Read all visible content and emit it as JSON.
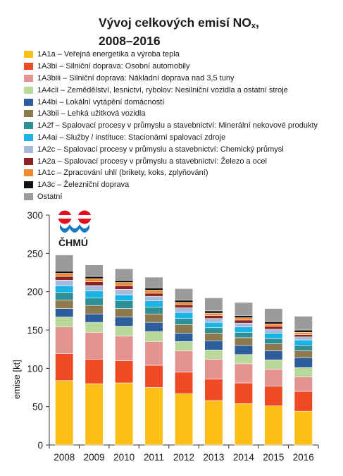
{
  "chart_data": {
    "type": "bar",
    "stacked": true,
    "title_main": "Vývoj celkových emisí NO",
    "title_sub": "x",
    "title_end": ",",
    "title_line2": "2008–2016",
    "ylabel": "emise [kt]",
    "ylim": [
      0,
      300
    ],
    "yticks": [
      0,
      50,
      100,
      150,
      200,
      250,
      300
    ],
    "grid": false,
    "legend_position": "top",
    "categories": [
      "2008",
      "2009",
      "2010",
      "2011",
      "2012",
      "2013",
      "2014",
      "2015",
      "2016"
    ],
    "series": [
      {
        "name": "1A1a – Veřejná energetika a výroba tepla",
        "color": "#fbbf17",
        "values": [
          84,
          80,
          81,
          75,
          67,
          58,
          54,
          51,
          44
        ]
      },
      {
        "name": "1A3bi – Silniční doprava: Osobní automobily",
        "color": "#ef4a24",
        "values": [
          35,
          32,
          29,
          29,
          28,
          28,
          27,
          26,
          26
        ]
      },
      {
        "name": "1A3biii – Silniční doprava: Nákladní doprava nad 3,5 tuny",
        "color": "#e39490",
        "values": [
          35,
          35,
          32,
          31,
          28,
          26,
          25,
          22,
          19
        ]
      },
      {
        "name": "1A4cii – Zemědělství, lesnictví, rybolov: Nesilniční vozidla a ostatní stroje",
        "color": "#b9d99b",
        "values": [
          13,
          13,
          13,
          13,
          12,
          12,
          12,
          12,
          12
        ]
      },
      {
        "name": "1A4bi – Lokální vytápění domácností",
        "color": "#2e5d9b",
        "values": [
          11,
          11,
          12,
          12,
          11,
          12,
          12,
          12,
          13
        ]
      },
      {
        "name": "1A3bii – Lehká užitková vozidla",
        "color": "#8c7a4c",
        "values": [
          11,
          11,
          11,
          11,
          11,
          10,
          10,
          9,
          9
        ]
      },
      {
        "name": "1A2f – Spalovací procesy v průmyslu a stavebnictví: Minerální nekovové produkty",
        "color": "#2f8f97",
        "values": [
          10,
          10,
          10,
          9,
          8,
          7,
          7,
          7,
          7
        ]
      },
      {
        "name": "1A4ai – Služby / instituce: Stacionární spalovací zdroje",
        "color": "#19b3e6",
        "values": [
          9,
          9,
          8,
          8,
          8,
          7,
          7,
          7,
          7
        ]
      },
      {
        "name": "1A2c – Spalovací procesy v průmyslu a stavebnictví: Chemický průmysl",
        "color": "#a7b9dc",
        "values": [
          7,
          7,
          7,
          6,
          6,
          5,
          5,
          5,
          4
        ]
      },
      {
        "name": "1A2a – Spalovací procesy v průmyslu a stavebnictví: Železo a ocel",
        "color": "#8b2322",
        "values": [
          5,
          5,
          5,
          4,
          4,
          4,
          4,
          4,
          3
        ]
      },
      {
        "name": "1A1c – Zpracování uhlí (brikety, koks, zplyňování)",
        "color": "#f4882c",
        "values": [
          4,
          4,
          4,
          4,
          3,
          3,
          3,
          3,
          3
        ]
      },
      {
        "name": "1A3c – Železniční doprava",
        "color": "#111111",
        "values": [
          3,
          3,
          3,
          3,
          3,
          3,
          3,
          3,
          3
        ]
      },
      {
        "name": "Ostatní",
        "color": "#9b9b9b",
        "values": [
          21,
          15,
          15,
          14,
          15,
          17,
          17,
          17,
          18
        ]
      }
    ]
  },
  "logo": {
    "text": "ČHMÚ",
    "colors": {
      "red": "#e0101e",
      "blue": "#1b7bc2"
    }
  }
}
